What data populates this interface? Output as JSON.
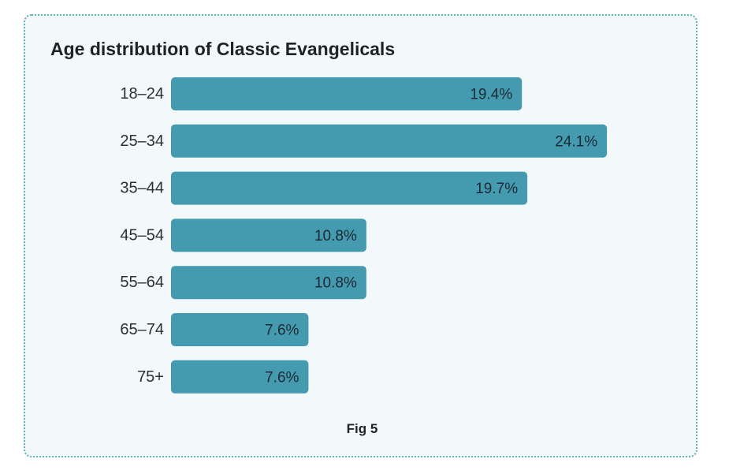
{
  "chart_data": {
    "type": "bar",
    "orientation": "horizontal",
    "title": "Age distribution of Classic Evangelicals",
    "caption": "Fig 5",
    "categories": [
      "18–24",
      "25–34",
      "35–44",
      "45–54",
      "55–64",
      "65–74",
      "75+"
    ],
    "values": [
      19.4,
      24.1,
      19.7,
      10.8,
      10.8,
      7.6,
      7.6
    ],
    "value_labels": [
      "19.4%",
      "24.1%",
      "19.7%",
      "10.8%",
      "10.8%",
      "7.6%",
      "7.6%"
    ],
    "unit": "%",
    "grid": false,
    "legend": "none",
    "colors": {
      "bar": "#449aaf",
      "bar_label": "#1d2a33",
      "category_label": "#2a2f34",
      "card_background": "#f3f9fa",
      "card_border": "#5fb1bd"
    }
  }
}
